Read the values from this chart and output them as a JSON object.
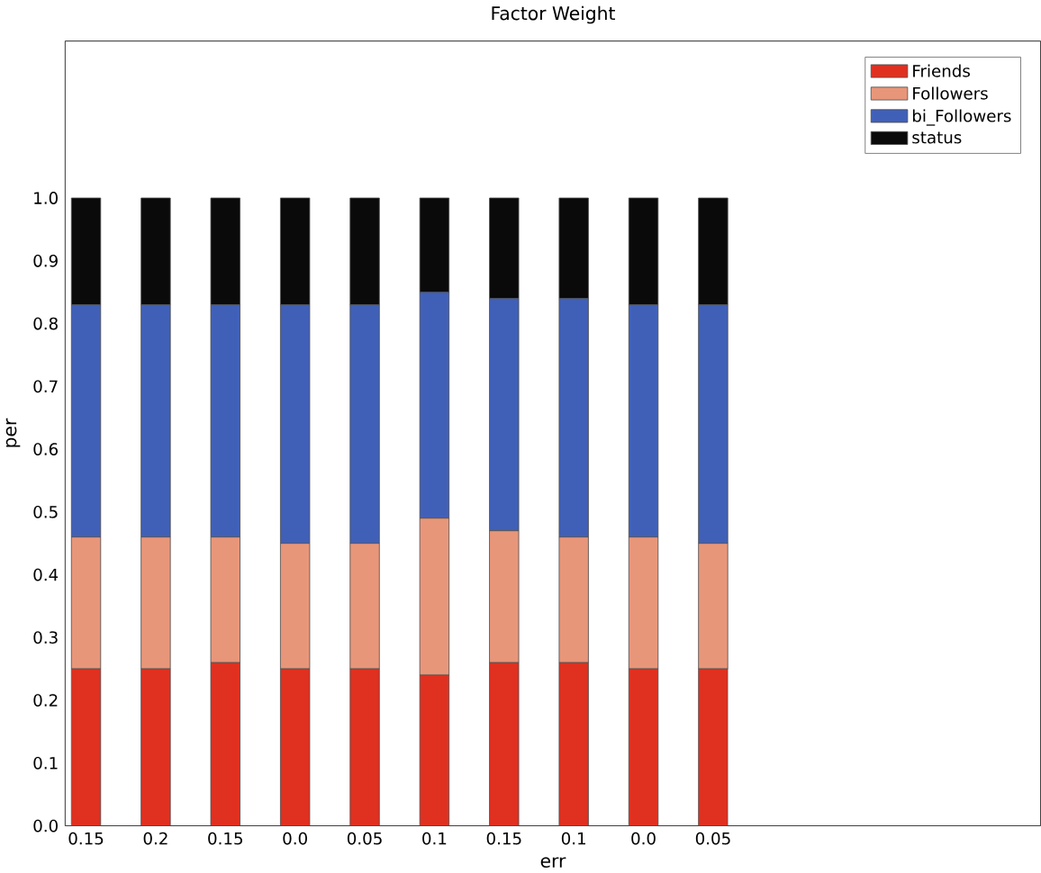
{
  "chart_data": {
    "type": "bar",
    "title": "Factor Weight",
    "xlabel": "err",
    "ylabel": "per",
    "categories": [
      "0.15",
      "0.2",
      "0.15",
      "0.0",
      "0.05",
      "0.1",
      "0.15",
      "0.1",
      "0.0",
      "0.05"
    ],
    "stacked": true,
    "legend": "top right",
    "ylim": [
      0,
      1.25
    ],
    "yticks": [
      {
        "value": 0,
        "label": "0.0"
      },
      0.1,
      0.2,
      0.3,
      0.4,
      0.5,
      0.6,
      0.7,
      0.8,
      0.9,
      {
        "value": 1,
        "label": "1.0"
      }
    ],
    "series": [
      {
        "name": "Friends",
        "color": "#e03020",
        "values": [
          0.25,
          0.25,
          0.26,
          0.25,
          0.25,
          0.24,
          0.26,
          0.26,
          0.25,
          0.25
        ]
      },
      {
        "name": "Followers",
        "color": "#e8967a",
        "values": [
          0.21,
          0.21,
          0.2,
          0.2,
          0.2,
          0.25,
          0.21,
          0.2,
          0.21,
          0.2
        ]
      },
      {
        "name": "bi_Followers",
        "color": "#4060b8",
        "values": [
          0.37,
          0.37,
          0.37,
          0.38,
          0.38,
          0.36,
          0.37,
          0.38,
          0.37,
          0.38
        ]
      },
      {
        "name": "status",
        "color": "#0a0a0a",
        "values": [
          0.17,
          0.17,
          0.17,
          0.17,
          0.17,
          0.15,
          0.16,
          0.16,
          0.17,
          0.17
        ]
      }
    ]
  }
}
